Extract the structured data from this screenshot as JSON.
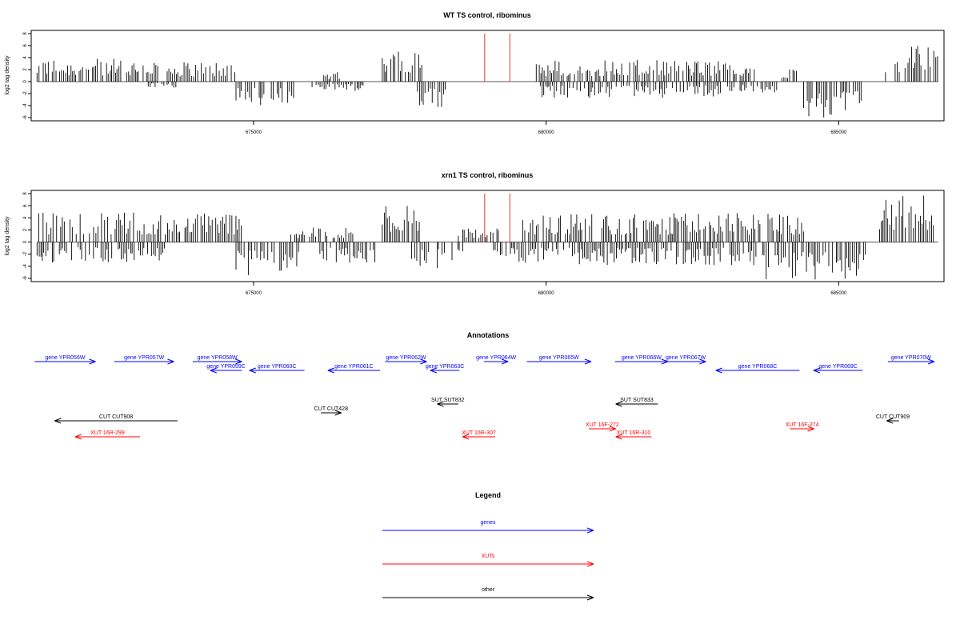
{
  "chart_data": [
    {
      "type": "bar",
      "title": "WT TS control, ribominus",
      "ylabel": "log2 tag density",
      "xlabel": "",
      "xlim": [
        671200,
        686800
      ],
      "ylim": [
        -6,
        8
      ],
      "x_ticks": [
        675000,
        680000,
        685000
      ],
      "y_ticks": [
        -6,
        -4,
        -2,
        0,
        2,
        4,
        6,
        8
      ],
      "grid": false,
      "series": [
        {
          "strand": "+",
          "color": "#000000",
          "segments": [
            {
              "start": 671300,
              "end": 673400,
              "max": 3.8
            },
            {
              "start": 673500,
              "end": 674700,
              "max": 3.4
            },
            {
              "start": 676200,
              "end": 676500,
              "max": 1.6
            },
            {
              "start": 677200,
              "end": 677900,
              "max": 5.8
            },
            {
              "start": 679800,
              "end": 683600,
              "max": 3.6
            },
            {
              "start": 683900,
              "end": 684300,
              "max": 2.4
            },
            {
              "start": 685800,
              "end": 686700,
              "max": 6.1
            }
          ]
        },
        {
          "strand": "-",
          "color": "#000000",
          "segments": [
            {
              "start": 673200,
              "end": 673700,
              "min": -1.0
            },
            {
              "start": 674700,
              "end": 675700,
              "min": -4.2
            },
            {
              "start": 676000,
              "end": 676900,
              "min": -1.6
            },
            {
              "start": 677800,
              "end": 678300,
              "min": -4.4
            },
            {
              "start": 679900,
              "end": 683000,
              "min": -2.8
            },
            {
              "start": 683100,
              "end": 684000,
              "min": -2.0
            },
            {
              "start": 684400,
              "end": 685400,
              "min": -6.3
            }
          ]
        },
        {
          "name": "",
          "color": "#e8322c",
          "type": "vline",
          "x": [
            678950,
            679380
          ],
          "height": 8
        }
      ]
    },
    {
      "type": "bar",
      "title": "xrn1 TS control, ribominus",
      "ylabel": "log2 tag density",
      "xlabel": "",
      "xlim": [
        671200,
        686800
      ],
      "ylim": [
        -6,
        8
      ],
      "x_ticks": [
        675000,
        680000,
        685000
      ],
      "y_ticks": [
        -6,
        -4,
        -2,
        0,
        2,
        4,
        6,
        8
      ],
      "grid": false,
      "series": [
        {
          "strand": "+",
          "color": "#000000",
          "segments": [
            {
              "start": 671300,
              "end": 673500,
              "max": 5.0
            },
            {
              "start": 673500,
              "end": 674800,
              "max": 5.0
            },
            {
              "start": 675600,
              "end": 676700,
              "max": 2.4
            },
            {
              "start": 677200,
              "end": 677900,
              "max": 6.8
            },
            {
              "start": 678500,
              "end": 679200,
              "max": 2.6
            },
            {
              "start": 679600,
              "end": 684400,
              "max": 4.8
            },
            {
              "start": 685700,
              "end": 686700,
              "max": 8.0
            }
          ]
        },
        {
          "strand": "-",
          "color": "#000000",
          "segments": [
            {
              "start": 671300,
              "end": 673500,
              "min": -3.4
            },
            {
              "start": 674700,
              "end": 675800,
              "min": -5.8
            },
            {
              "start": 676100,
              "end": 677100,
              "min": -3.6
            },
            {
              "start": 677700,
              "end": 678600,
              "min": -4.6
            },
            {
              "start": 679100,
              "end": 680200,
              "min": -3.6
            },
            {
              "start": 680300,
              "end": 683600,
              "min": -3.8
            },
            {
              "start": 683700,
              "end": 685500,
              "min": -6.2
            }
          ]
        },
        {
          "name": "",
          "color": "#e8322c",
          "type": "vline",
          "x": [
            678950,
            679380
          ],
          "height": 8
        }
      ]
    },
    {
      "type": "annotation",
      "title": "Annotations",
      "xlim": [
        671200,
        686800
      ],
      "features": [
        {
          "label": "gene YPR056W",
          "start": 671260,
          "end": 672300,
          "strand": "+",
          "row": 0,
          "color": "#0000ff"
        },
        {
          "label": "gene YPR057W",
          "start": 672620,
          "end": 673640,
          "strand": "+",
          "row": 0,
          "color": "#0000ff"
        },
        {
          "label": "gene YPR058W",
          "start": 673960,
          "end": 674800,
          "strand": "+",
          "row": 0,
          "color": "#0000ff"
        },
        {
          "label": "gene YPR059C",
          "start": 674260,
          "end": 674800,
          "strand": "-",
          "row": 1,
          "color": "#0000ff"
        },
        {
          "label": "gene YPR060C",
          "start": 674930,
          "end": 675870,
          "strand": "-",
          "row": 1,
          "color": "#0000ff"
        },
        {
          "label": "gene YPR061C",
          "start": 676270,
          "end": 677160,
          "strand": "-",
          "row": 1,
          "color": "#0000ff"
        },
        {
          "label": "gene YPR062W",
          "start": 677250,
          "end": 677960,
          "strand": "+",
          "row": 0,
          "color": "#0000ff"
        },
        {
          "label": "gene YPR063C",
          "start": 678020,
          "end": 678520,
          "strand": "-",
          "row": 1,
          "color": "#0000ff"
        },
        {
          "label": "gene YPR064W",
          "start": 678940,
          "end": 679350,
          "strand": "+",
          "row": 0,
          "color": "#0000ff"
        },
        {
          "label": "gene YPR065W",
          "start": 679670,
          "end": 680770,
          "strand": "+",
          "row": 0,
          "color": "#0000ff"
        },
        {
          "label": "gene YPR066W",
          "start": 681180,
          "end": 682080,
          "strand": "+",
          "row": 0,
          "color": "#0000ff"
        },
        {
          "label": "gene YPR067W",
          "start": 682040,
          "end": 682730,
          "strand": "+",
          "row": 0,
          "color": "#0000ff"
        },
        {
          "label": "gene YPR068C",
          "start": 682900,
          "end": 684330,
          "strand": "-",
          "row": 1,
          "color": "#0000ff"
        },
        {
          "label": "gene YPR069C",
          "start": 684570,
          "end": 685410,
          "strand": "-",
          "row": 1,
          "color": "#0000ff"
        },
        {
          "label": "gene YPR070W",
          "start": 685840,
          "end": 687400,
          "strand": "+",
          "row": 0,
          "color": "#0000ff"
        },
        {
          "label": "SUT SUT832",
          "start": 678140,
          "end": 678500,
          "strand": "-",
          "row": 3,
          "color": "#000000"
        },
        {
          "label": "SUT SUT833",
          "start": 681190,
          "end": 681910,
          "strand": "-",
          "row": 3,
          "color": "#000000"
        },
        {
          "label": "CUT CUT428",
          "start": 676150,
          "end": 676500,
          "strand": "+",
          "row": 4,
          "color": "#000000"
        },
        {
          "label": "CUT CUT908",
          "start": 671600,
          "end": 673700,
          "strand": "-",
          "row": 5,
          "color": "#000000"
        },
        {
          "label": "CUT CUT909",
          "start": 685820,
          "end": 686030,
          "strand": "-",
          "row": 5,
          "color": "#000000"
        },
        {
          "label": "XUT 16F-272",
          "start": 680730,
          "end": 681190,
          "strand": "+",
          "row": 6,
          "color": "#ff0000"
        },
        {
          "label": "XUT 16F-274",
          "start": 684170,
          "end": 684580,
          "strand": "+",
          "row": 6,
          "color": "#ff0000"
        },
        {
          "label": "XUT 16R-299",
          "start": 671950,
          "end": 673060,
          "strand": "-",
          "row": 7,
          "color": "#ff0000"
        },
        {
          "label": "XUT 16R-307",
          "start": 678570,
          "end": 679130,
          "strand": "-",
          "row": 7,
          "color": "#ff0000"
        },
        {
          "label": "XUT 16R-310",
          "start": 681190,
          "end": 681800,
          "strand": "-",
          "row": 7,
          "color": "#ff0000"
        }
      ]
    },
    {
      "type": "legend",
      "title": "Legend",
      "entries": [
        {
          "label": "genes",
          "color": "#0000ff"
        },
        {
          "label": "XUTs",
          "color": "#ff0000"
        },
        {
          "label": "other",
          "color": "#000000"
        }
      ]
    }
  ]
}
